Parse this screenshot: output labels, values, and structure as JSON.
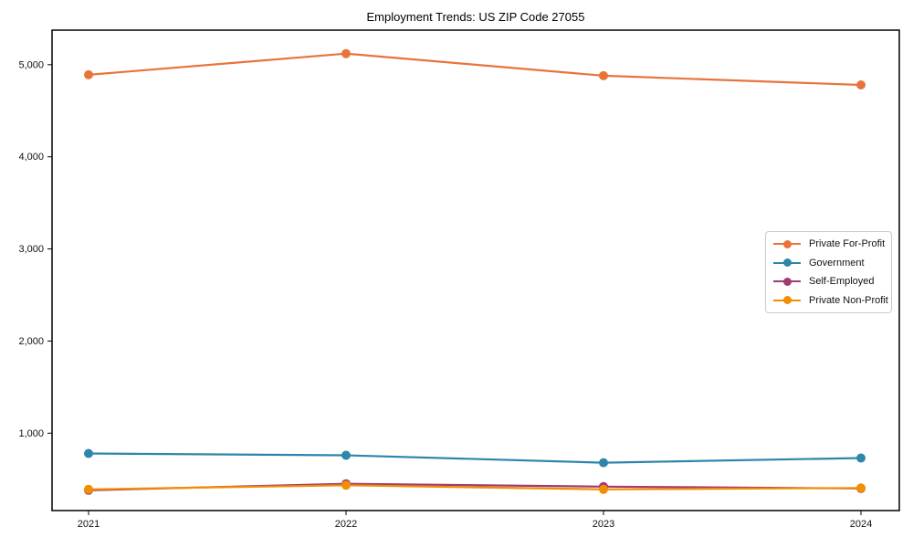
{
  "chart_data": {
    "type": "line",
    "title": "Employment Trends: US ZIP Code 27055",
    "xlabel": "",
    "ylabel": "",
    "x": [
      "2021",
      "2022",
      "2023",
      "2024"
    ],
    "series": [
      {
        "name": "Private For-Profit",
        "color": "#E8743B",
        "values": [
          4890,
          5120,
          4880,
          4780
        ]
      },
      {
        "name": "Government",
        "color": "#2E86AB",
        "values": [
          780,
          760,
          680,
          730
        ]
      },
      {
        "name": "Self-Employed",
        "color": "#A23B72",
        "values": [
          380,
          450,
          420,
          400
        ]
      },
      {
        "name": "Private Non-Profit",
        "color": "#F18F01",
        "values": [
          390,
          435,
          390,
          405
        ]
      }
    ],
    "yticks": [
      1000,
      2000,
      3000,
      4000,
      5000
    ],
    "ytick_labels": [
      "1,000",
      "2,000",
      "3,000",
      "4,000",
      "5,000"
    ],
    "ylim": [
      160,
      5375
    ],
    "grid": false,
    "legend_position": "center-right",
    "frame_color": "#000000",
    "marker": "circle"
  }
}
